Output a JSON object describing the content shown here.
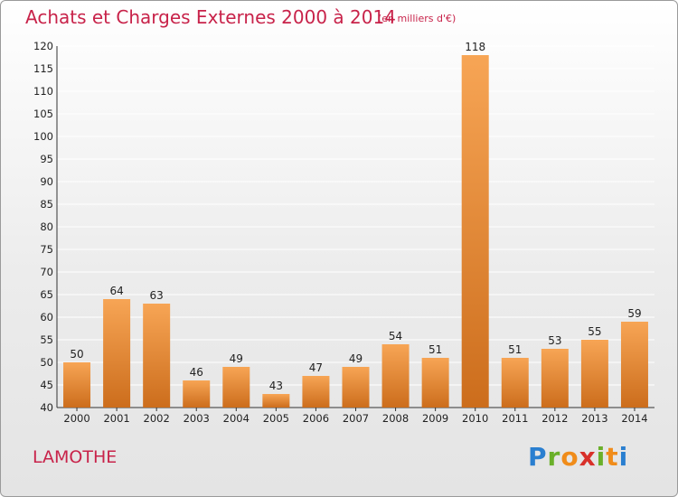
{
  "header": {
    "title": "Achats et Charges Externes 2000 à 2014",
    "subtitle": "(en milliers d'€)"
  },
  "footer": {
    "commune": "LAMOTHE",
    "logo_text": "Proxiti"
  },
  "colors": {
    "title": "#c8234a",
    "bar_light": "#f7a555",
    "bar_dark": "#cc6d1c",
    "grid": "#ffffff"
  },
  "chart_data": {
    "type": "bar",
    "title": "Achats et Charges Externes 2000 à 2014",
    "subtitle": "(en milliers d'€)",
    "xlabel": "",
    "ylabel": "",
    "categories": [
      "2000",
      "2001",
      "2002",
      "2003",
      "2004",
      "2005",
      "2006",
      "2007",
      "2008",
      "2009",
      "2010",
      "2011",
      "2012",
      "2013",
      "2014"
    ],
    "values": [
      50,
      64,
      63,
      46,
      49,
      43,
      47,
      49,
      54,
      51,
      118,
      51,
      53,
      55,
      59
    ],
    "ylim": [
      40,
      120
    ],
    "ytick_step": 5,
    "grid": true
  }
}
